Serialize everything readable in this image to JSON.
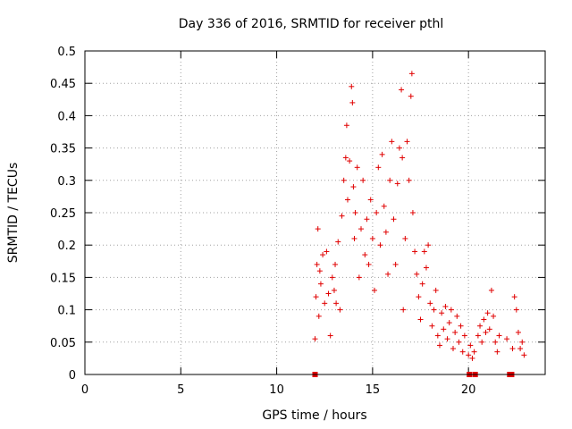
{
  "chart_data": {
    "type": "scatter",
    "title": "Day 336 of 2016, SRMTID for receiver pthl",
    "xlabel": "GPS time / hours",
    "ylabel": "SRMTID / TECUs",
    "xlim": [
      0,
      24
    ],
    "ylim": [
      0,
      0.5
    ],
    "x_ticks": [
      "0",
      "5",
      "10",
      "15",
      "20"
    ],
    "y_ticks": [
      "0",
      "0.05",
      "0.1",
      "0.15",
      "0.2",
      "0.25",
      "0.3",
      "0.35",
      "0.4",
      "0.45",
      "0.5"
    ],
    "x_tick_values": [
      0,
      5,
      10,
      15,
      20
    ],
    "y_tick_values": [
      0,
      0.05,
      0.1,
      0.15,
      0.2,
      0.25,
      0.3,
      0.35,
      0.4,
      0.45,
      0.5
    ],
    "grid": true,
    "marker": "+",
    "color": "#e00000",
    "series": [
      {
        "name": "SRMTID",
        "points": [
          [
            12.0,
            0.0
          ],
          [
            20.05,
            0.0
          ],
          [
            20.35,
            0.0
          ],
          [
            22.15,
            0.0
          ],
          [
            22.25,
            0.0
          ],
          [
            12.0,
            0.055
          ],
          [
            12.05,
            0.12
          ],
          [
            12.1,
            0.17
          ],
          [
            12.15,
            0.225
          ],
          [
            12.2,
            0.09
          ],
          [
            12.25,
            0.16
          ],
          [
            12.3,
            0.14
          ],
          [
            12.4,
            0.185
          ],
          [
            12.5,
            0.11
          ],
          [
            12.6,
            0.19
          ],
          [
            12.7,
            0.125
          ],
          [
            12.8,
            0.06
          ],
          [
            12.9,
            0.15
          ],
          [
            13.0,
            0.13
          ],
          [
            13.05,
            0.17
          ],
          [
            13.1,
            0.11
          ],
          [
            13.2,
            0.205
          ],
          [
            13.3,
            0.1
          ],
          [
            13.4,
            0.245
          ],
          [
            13.5,
            0.3
          ],
          [
            13.6,
            0.335
          ],
          [
            13.65,
            0.385
          ],
          [
            13.7,
            0.27
          ],
          [
            13.8,
            0.33
          ],
          [
            13.9,
            0.445
          ],
          [
            13.95,
            0.42
          ],
          [
            14.0,
            0.29
          ],
          [
            14.05,
            0.21
          ],
          [
            14.1,
            0.25
          ],
          [
            14.2,
            0.32
          ],
          [
            14.3,
            0.15
          ],
          [
            14.4,
            0.225
          ],
          [
            14.5,
            0.3
          ],
          [
            14.6,
            0.185
          ],
          [
            14.7,
            0.24
          ],
          [
            14.8,
            0.17
          ],
          [
            14.9,
            0.27
          ],
          [
            15.0,
            0.21
          ],
          [
            15.1,
            0.13
          ],
          [
            15.2,
            0.25
          ],
          [
            15.3,
            0.32
          ],
          [
            15.4,
            0.2
          ],
          [
            15.5,
            0.34
          ],
          [
            15.6,
            0.26
          ],
          [
            15.7,
            0.22
          ],
          [
            15.8,
            0.155
          ],
          [
            15.9,
            0.3
          ],
          [
            16.0,
            0.36
          ],
          [
            16.1,
            0.24
          ],
          [
            16.2,
            0.17
          ],
          [
            16.3,
            0.295
          ],
          [
            16.4,
            0.35
          ],
          [
            16.5,
            0.44
          ],
          [
            16.55,
            0.335
          ],
          [
            16.6,
            0.1
          ],
          [
            16.7,
            0.21
          ],
          [
            16.8,
            0.36
          ],
          [
            16.9,
            0.3
          ],
          [
            17.0,
            0.43
          ],
          [
            17.05,
            0.465
          ],
          [
            17.1,
            0.25
          ],
          [
            17.2,
            0.19
          ],
          [
            17.3,
            0.155
          ],
          [
            17.4,
            0.12
          ],
          [
            17.5,
            0.085
          ],
          [
            17.6,
            0.14
          ],
          [
            17.7,
            0.19
          ],
          [
            17.8,
            0.165
          ],
          [
            17.9,
            0.2
          ],
          [
            18.0,
            0.11
          ],
          [
            18.1,
            0.075
          ],
          [
            18.2,
            0.1
          ],
          [
            18.3,
            0.13
          ],
          [
            18.4,
            0.06
          ],
          [
            18.5,
            0.045
          ],
          [
            18.6,
            0.095
          ],
          [
            18.7,
            0.07
          ],
          [
            18.8,
            0.105
          ],
          [
            18.9,
            0.055
          ],
          [
            19.0,
            0.08
          ],
          [
            19.1,
            0.1
          ],
          [
            19.2,
            0.04
          ],
          [
            19.3,
            0.065
          ],
          [
            19.4,
            0.09
          ],
          [
            19.5,
            0.05
          ],
          [
            19.6,
            0.075
          ],
          [
            19.7,
            0.035
          ],
          [
            19.8,
            0.06
          ],
          [
            20.0,
            0.03
          ],
          [
            20.1,
            0.045
          ],
          [
            20.2,
            0.025
          ],
          [
            20.3,
            0.035
          ],
          [
            20.5,
            0.06
          ],
          [
            20.6,
            0.075
          ],
          [
            20.7,
            0.05
          ],
          [
            20.8,
            0.085
          ],
          [
            20.9,
            0.065
          ],
          [
            21.0,
            0.095
          ],
          [
            21.1,
            0.07
          ],
          [
            21.2,
            0.13
          ],
          [
            21.3,
            0.09
          ],
          [
            21.4,
            0.05
          ],
          [
            21.5,
            0.035
          ],
          [
            21.6,
            0.06
          ],
          [
            22.0,
            0.055
          ],
          [
            22.3,
            0.04
          ],
          [
            22.4,
            0.12
          ],
          [
            22.5,
            0.1
          ],
          [
            22.6,
            0.065
          ],
          [
            22.7,
            0.04
          ],
          [
            22.8,
            0.05
          ],
          [
            22.9,
            0.03
          ]
        ]
      }
    ]
  }
}
